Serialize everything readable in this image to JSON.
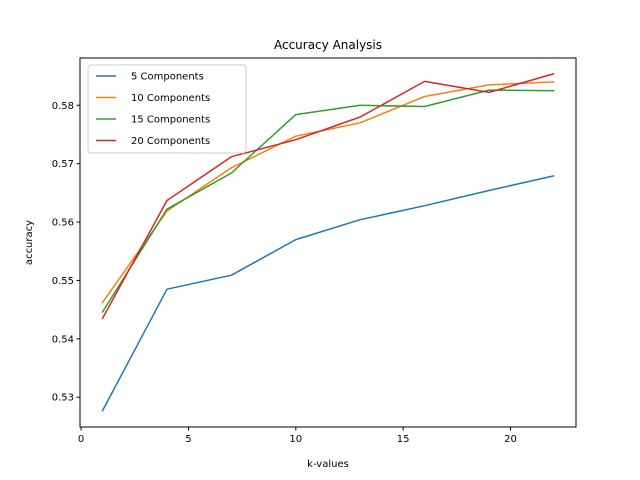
{
  "chart_data": {
    "type": "line",
    "title": "Accuracy Analysis",
    "xlabel": "k-values",
    "ylabel": "accuracy",
    "xlim": [
      -0.05,
      23.05
    ],
    "ylim": [
      0.5249,
      0.5881
    ],
    "x": [
      1,
      4,
      7,
      10,
      13,
      16,
      19,
      22
    ],
    "xticks": [
      0,
      5,
      10,
      15,
      20
    ],
    "yticks": [
      0.53,
      0.54,
      0.55,
      0.56,
      0.57,
      0.58
    ],
    "ytick_labels": [
      "0.53",
      "0.54",
      "0.55",
      "0.56",
      "0.57",
      "0.58"
    ],
    "grid": false,
    "legend_position": "upper-left",
    "series": [
      {
        "name": "5 Components",
        "color": "#1f77b4",
        "values": [
          0.5277,
          0.5485,
          0.5509,
          0.557,
          0.5604,
          0.5628,
          0.5654,
          0.5679
        ]
      },
      {
        "name": "10 Components",
        "color": "#ff7f0e",
        "values": [
          0.5462,
          0.5619,
          0.5693,
          0.5747,
          0.577,
          0.5815,
          0.5835,
          0.584
        ]
      },
      {
        "name": "15 Components",
        "color": "#2ca02c",
        "values": [
          0.5446,
          0.5622,
          0.5684,
          0.5784,
          0.58,
          0.5798,
          0.5826,
          0.5825
        ]
      },
      {
        "name": "20 Components",
        "color": "#d62728",
        "values": [
          0.5435,
          0.5637,
          0.5712,
          0.5741,
          0.578,
          0.5841,
          0.5822,
          0.5854
        ]
      }
    ]
  }
}
